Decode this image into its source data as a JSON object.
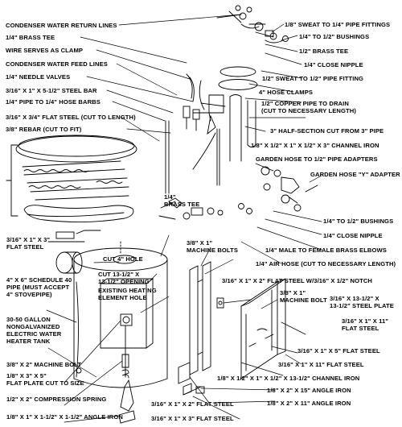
{
  "diagram": {
    "labels": {
      "condenser_return_lines": "CONDENSER WATER RETURN LINES",
      "brass_tee_quarter": "1/4\" BRASS TEE",
      "wire_clamp": "WIRE SERVES AS CLAMP",
      "condenser_feed_lines": "CONDENSER WATER FEED LINES",
      "needle_valves": "1/4\" NEEDLE VALVES",
      "steel_bar": "3/16\" X 1\" X 5-1/2\" STEEL BAR",
      "hose_barbs": "1/4\" PIPE TO 1/4\" HOSE BARBS",
      "flat_steel_cut": "3/16\" X 3/4\" FLAT STEEL (CUT TO LENGTH)",
      "rebar": "3/8\" REBAR (CUT TO FIT)",
      "sweat_fittings": "1/8\" SWEAT TO 1/4\" PIPE FITTINGS",
      "bushings_top": "1/4\" TO 1/2\" BUSHINGS",
      "brass_tee_half": "1/2\" BRASS TEE",
      "close_nipple_top": "1/4\" CLOSE NIPPLE",
      "sweat_half": "1/2\" SWEAT TO 1/2\" PIPE FITTING",
      "hose_clamps": "4\" HOSE CLAMPS",
      "copper_pipe": "1/2\" COPPER PIPE TO DRAIN\n(CUT TO NECESSARY LENGTH)",
      "half_section": "3\" HALF-SECTION CUT FROM 3\" PIPE",
      "channel_iron_top": "1/8\" X 1/2\" X 1\" X 1/2\" X 3\" CHANNEL IRON",
      "garden_hose_adapters": "GARDEN HOSE TO 1/2\" PIPE ADAPTERS",
      "garden_hose_y": "GARDEN HOSE \"Y\" ADAPTER",
      "brass_tee_mid": "1/4\"\nBRASS TEE",
      "bushings_mid": "1/4\" TO 1/2\" BUSHINGS",
      "close_nipple_mid": "1/4\" CLOSE NIPPLE",
      "brass_elbows": "1/4\" MALE TO FEMALE BRASS ELBOWS",
      "air_hose": "1/4\" AIR HOSE (CUT TO NECESSARY LENGTH)",
      "flat_steel_3": "3/16\" X 1\" X 3\"\nFLAT STEEL",
      "cut_hole": "CUT 4\" HOLE",
      "machine_bolts_top": "3/8\" X 1\"\nMACHINE BOLTS",
      "flat_steel_notch": "3/16\" X 1\" X 2\" FLAT STEEL W/3/16\" X 1/2\" NOTCH",
      "schedule_pipe": "4\" X 6\" SCHEDULE 40\nPIPE (MUST ACCEPT\n4\" STOVEPIPE)",
      "cut_opening": "CUT 13-1/2\" X\n13-1/2\" OPENING",
      "existing_heating": "EXISTING HEATING\nELEMENT HOLE",
      "machine_bolt_mid": "3/8\" X 1\"\nMACHINE BOLT",
      "steel_plate": "3/16\" X 13-1/2\" X\n13-1/2\" STEEL PLATE",
      "water_heater": "30-50 GALLON\nNONGALVANIZED\nELECTRIC WATER\nHEATER TANK",
      "flat_steel_11": "3/16\" X 1\" X 11\"\nFLAT STEEL",
      "machine_bolt_2": "3/8\" X 2\" MACHINE BOLT",
      "flat_steel_5": "3/16\" X 1\" X 5\" FLAT STEEL",
      "flat_plate": "1/8\" X 3\" X 5\"\nFLAT PLATE CUT TO SIZE",
      "flat_steel_11b": "3/16\" X 1\" X 11\" FLAT STEEL",
      "channel_iron_mid": "1/8\" X 1/2\" X 1\" X 1/2\" X 13-1/2\" CHANNEL IRON",
      "compression_spring": "1/2\" X 2\" COMPRESSION SPRING",
      "angle_iron_15": "1/8\" X 2\" X 15\" ANGLE IRON",
      "flat_steel_2": "3/16\" X 1\" X 2\" FLAT STEEL",
      "angle_iron_11": "1/8\" X 2\" X 11\" ANGLE IRON",
      "angle_iron_bottom": "1/8\" X 1\" X 1-1/2\" X 1-1/2\" ANGLE IRON",
      "flat_steel_3b": "3/16\" X 1\" X 3\" FLAT STEEL"
    }
  }
}
